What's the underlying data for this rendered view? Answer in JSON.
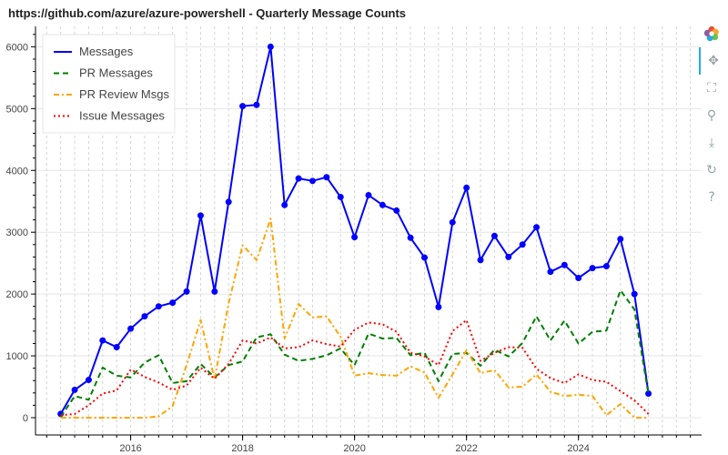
{
  "chart_data": {
    "type": "line",
    "title": "https://github.com/azure/azure-powershell - Quarterly Message Counts",
    "xlabel": "",
    "ylabel": "",
    "x_tick_labels": [
      "2016",
      "2018",
      "2020",
      "2022",
      "2024"
    ],
    "x_tick_values": [
      2016.0,
      2018.0,
      2020.0,
      2022.0,
      2024.0
    ],
    "y_ticks": [
      0,
      1000,
      2000,
      3000,
      4000,
      5000,
      6000
    ],
    "xlim": [
      2014.3,
      2026.2
    ],
    "ylim": [
      -280,
      6330
    ],
    "grid": true,
    "legend_position": "top-left",
    "x": [
      2014.75,
      2015.0,
      2015.25,
      2015.5,
      2015.75,
      2016.0,
      2016.25,
      2016.5,
      2016.75,
      2017.0,
      2017.25,
      2017.5,
      2017.75,
      2018.0,
      2018.25,
      2018.5,
      2018.75,
      2019.0,
      2019.25,
      2019.5,
      2019.75,
      2020.0,
      2020.25,
      2020.5,
      2020.75,
      2021.0,
      2021.25,
      2021.5,
      2021.75,
      2022.0,
      2022.25,
      2022.5,
      2022.75,
      2023.0,
      2023.25,
      2023.5,
      2023.75,
      2024.0,
      2024.25,
      2024.5,
      2024.75,
      2025.0,
      2025.25
    ],
    "series": [
      {
        "name": "Messages",
        "color": "#0000ff",
        "dash": "solid",
        "markers": true,
        "values": [
          60,
          450,
          610,
          1250,
          1140,
          1440,
          1640,
          1800,
          1860,
          2040,
          3270,
          2040,
          3490,
          5040,
          5060,
          6000,
          3440,
          3870,
          3830,
          3890,
          3570,
          2920,
          3600,
          3440,
          3350,
          2910,
          2590,
          1790,
          3160,
          3720,
          2550,
          2940,
          2600,
          2800,
          3080,
          2360,
          2470,
          2260,
          2420,
          2450,
          2890,
          2000,
          390
        ]
      },
      {
        "name": "PR Messages",
        "color": "#007f00",
        "dash": "dashed",
        "markers": false,
        "values": [
          10,
          350,
          290,
          810,
          680,
          650,
          890,
          1010,
          560,
          590,
          870,
          650,
          850,
          910,
          1300,
          1350,
          1020,
          920,
          950,
          1010,
          1120,
          850,
          1360,
          1280,
          1290,
          1010,
          1050,
          590,
          1030,
          1050,
          840,
          1100,
          990,
          1210,
          1640,
          1250,
          1570,
          1200,
          1390,
          1410,
          2060,
          1750,
          380
        ]
      },
      {
        "name": "PR Review Msgs",
        "color": "#ffa500",
        "dash": "dashdot",
        "markers": false,
        "values": [
          0,
          0,
          0,
          0,
          0,
          0,
          0,
          20,
          190,
          850,
          1580,
          620,
          1850,
          2790,
          2550,
          3220,
          1280,
          1840,
          1620,
          1640,
          1310,
          680,
          720,
          690,
          680,
          830,
          730,
          320,
          700,
          1090,
          720,
          770,
          490,
          500,
          700,
          420,
          350,
          370,
          350,
          40,
          220,
          0,
          0
        ]
      },
      {
        "name": "Issue Messages",
        "color": "#ff0000",
        "dash": "dotted",
        "markers": false,
        "values": [
          40,
          60,
          200,
          390,
          440,
          780,
          660,
          570,
          450,
          520,
          810,
          630,
          870,
          1250,
          1200,
          1300,
          1120,
          1140,
          1250,
          1190,
          1150,
          1420,
          1540,
          1510,
          1390,
          1050,
          990,
          850,
          1400,
          1580,
          920,
          1050,
          1140,
          1130,
          790,
          640,
          560,
          700,
          610,
          580,
          430,
          280,
          60
        ]
      }
    ]
  },
  "toolbar": {
    "tools": [
      {
        "name": "bokeh-logo-icon",
        "glyph": "",
        "active": false,
        "interactable": false
      },
      {
        "name": "pan-icon",
        "glyph": "✥",
        "active": true,
        "interactable": true
      },
      {
        "name": "box-zoom-icon",
        "glyph": "⛶",
        "active": false,
        "interactable": true
      },
      {
        "name": "wheel-zoom-icon",
        "glyph": "⚲",
        "active": false,
        "interactable": true
      },
      {
        "name": "save-icon",
        "glyph": "⤓",
        "active": false,
        "interactable": true
      },
      {
        "name": "reset-icon",
        "glyph": "↻",
        "active": false,
        "interactable": true
      },
      {
        "name": "help-icon",
        "glyph": "?",
        "active": false,
        "interactable": true
      }
    ]
  }
}
